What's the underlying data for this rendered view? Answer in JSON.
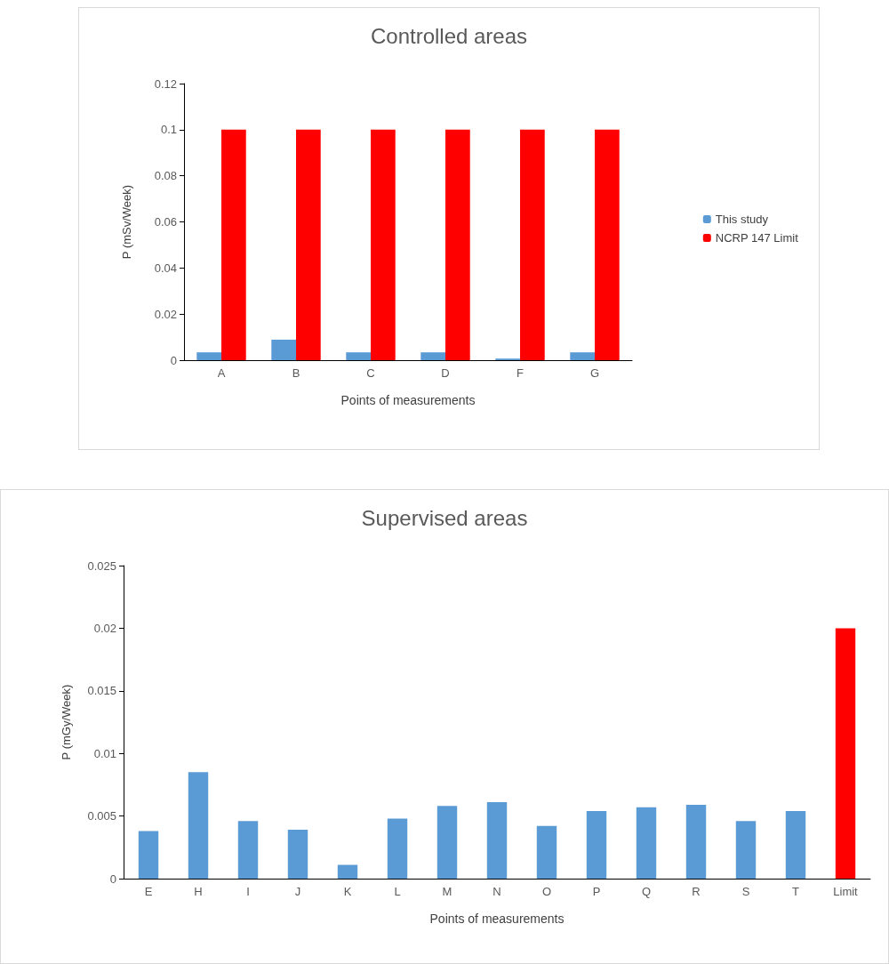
{
  "chart_data": [
    {
      "type": "bar",
      "title": "Controlled areas",
      "xlabel": "Points of measurements",
      "ylabel": "P (mSv/Week)",
      "categories": [
        "A",
        "B",
        "C",
        "D",
        "F",
        "G"
      ],
      "series": [
        {
          "name": "This study",
          "color": "#5b9bd5",
          "values": [
            0.0034,
            0.0089,
            0.0034,
            0.0034,
            0.0007,
            0.0034
          ]
        },
        {
          "name": "NCRP 147 Limit",
          "color": "#ff0000",
          "values": [
            0.1,
            0.1,
            0.1,
            0.1,
            0.1,
            0.1
          ]
        }
      ],
      "ylim": [
        0,
        0.12
      ],
      "yticks": [
        0,
        0.02,
        0.04,
        0.06,
        0.08,
        0.1,
        0.12
      ],
      "legend": "right"
    },
    {
      "type": "bar",
      "title": "Supervised areas",
      "xlabel": "Points of measurements",
      "ylabel": "P (mGy/Week)",
      "categories": [
        "E",
        "H",
        "I",
        "J",
        "K",
        "L",
        "M",
        "N",
        "O",
        "P",
        "Q",
        "R",
        "S",
        "T",
        "Limit"
      ],
      "values": [
        0.0038,
        0.0085,
        0.0046,
        0.0039,
        0.0011,
        0.0048,
        0.0058,
        0.0061,
        0.0042,
        0.0054,
        0.0057,
        0.0059,
        0.0046,
        0.0054,
        0.02
      ],
      "colors": [
        "#5b9bd5",
        "#5b9bd5",
        "#5b9bd5",
        "#5b9bd5",
        "#5b9bd5",
        "#5b9bd5",
        "#5b9bd5",
        "#5b9bd5",
        "#5b9bd5",
        "#5b9bd5",
        "#5b9bd5",
        "#5b9bd5",
        "#5b9bd5",
        "#5b9bd5",
        "#ff0000"
      ],
      "ylim": [
        0,
        0.025
      ],
      "yticks": [
        0,
        0.005,
        0.01,
        0.015,
        0.02,
        0.025
      ]
    }
  ]
}
